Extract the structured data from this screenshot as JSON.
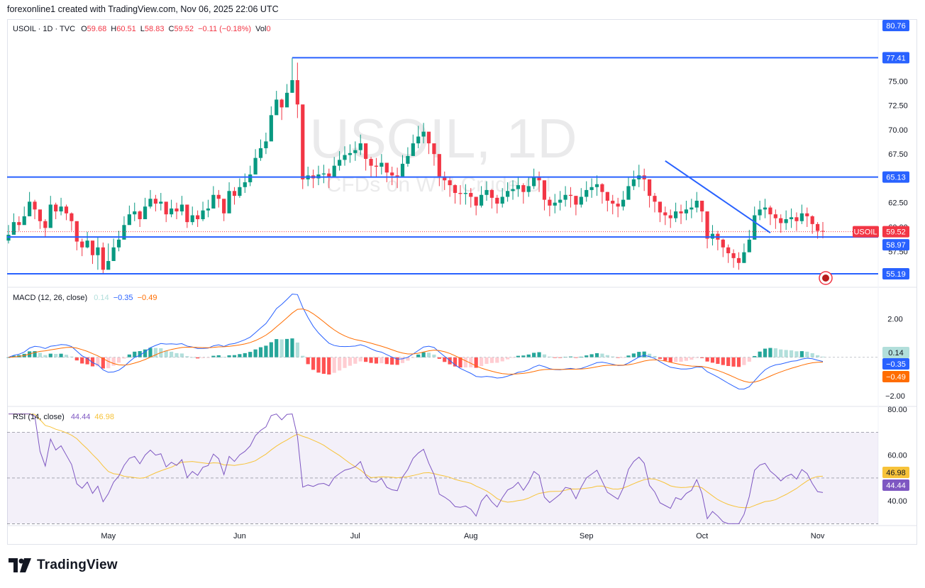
{
  "header": {
    "attribution": "forexonline1 created with TradingView.com, Nov 06, 2025 22:06 UTC"
  },
  "legend": {
    "symbol": "USOIL · 1D · TVC",
    "o_label": "O",
    "o": "59.68",
    "h_label": "H",
    "h": "60.51",
    "l_label": "L",
    "l": "58.83",
    "c_label": "C",
    "c": "59.52",
    "chg": "−0.11 (−0.18%)",
    "vol_label": "Vol",
    "vol": "0"
  },
  "watermark": {
    "line1": "USOIL, 1D",
    "line2": "CFDs on WTI Crude Oil"
  },
  "brand": {
    "name": "TradingView"
  },
  "colors": {
    "up": "#089981",
    "down": "#f23645",
    "level": "#2962ff",
    "macd": "#2962ff",
    "signal": "#ff6d00",
    "rsi": "#7e57c2",
    "rsi_ma": "#f7c33a"
  },
  "chart_data": [
    {
      "type": "candlestick",
      "ylim": [
        53.8,
        81.3
      ],
      "x_ticks": [
        "May",
        "Jun",
        "Jul",
        "Aug",
        "Sep",
        "Oct",
        "Nov"
      ],
      "y_ticks": [
        "75.00",
        "72.50",
        "70.00",
        "67.50",
        "62.50",
        "60.00",
        "57.50"
      ],
      "price_labels": [
        {
          "text": "80.76",
          "kind": "top"
        },
        {
          "text": "77.41",
          "kind": "level"
        },
        {
          "text": "65.13",
          "kind": "level"
        },
        {
          "text": "59.52",
          "kind": "last",
          "name": "USOIL"
        },
        {
          "text": "58.97",
          "kind": "level"
        },
        {
          "text": "55.19",
          "kind": "level"
        }
      ],
      "levels": [
        77.41,
        65.13,
        58.97,
        55.19
      ],
      "trendline": {
        "from": [
          "Sep 26",
          66.8
        ],
        "to": [
          "Oct 22",
          59.4
        ]
      },
      "close": [
        59.2,
        60.5,
        60.2,
        61.1,
        62.6,
        61.8,
        60.6,
        59.9,
        62.3,
        61.6,
        62.1,
        61.4,
        60.6,
        58.5,
        57.9,
        58.6,
        57.1,
        57.9,
        55.6,
        56.5,
        57.9,
        58.7,
        60.2,
        61.3,
        61.6,
        60.8,
        62.1,
        62.9,
        62.4,
        62.6,
        61.3,
        61.9,
        61.6,
        62.3,
        60.5,
        61.2,
        60.8,
        61.7,
        61.9,
        63.3,
        62.9,
        61.4,
        63.7,
        63.2,
        64.1,
        64.6,
        65.4,
        67.1,
        68.1,
        68.8,
        71.5,
        73.1,
        72.3,
        73.8,
        75.1,
        72.6,
        64.9,
        65.3,
        65.0,
        65.4,
        65.5,
        65.1,
        66.3,
        66.9,
        67.4,
        67.6,
        67.9,
        68.6,
        67.0,
        66.3,
        66.2,
        66.6,
        65.6,
        65.3,
        65.2,
        66.5,
        67.3,
        68.6,
        69.3,
        69.8,
        68.6,
        67.5,
        65.2,
        64.8,
        64.3,
        63.5,
        63.4,
        63.5,
        63.1,
        62.2,
        63.3,
        63.8,
        63.0,
        62.4,
        63.1,
        63.7,
        63.9,
        64.3,
        63.6,
        64.2,
        65.1,
        64.8,
        62.8,
        62.2,
        62.5,
        62.8,
        63.3,
        63.2,
        62.3,
        63.1,
        63.8,
        64.1,
        64.4,
        63.6,
        62.7,
        62.4,
        62.1,
        62.8,
        64.2,
        64.9,
        65.3,
        64.9,
        63.2,
        62.6,
        61.5,
        61.2,
        60.9,
        61.6,
        61.4,
        61.8,
        62.0,
        62.7,
        61.6,
        58.8,
        59.3,
        58.7,
        57.9,
        57.3,
        56.8,
        56.3,
        57.4,
        58.7,
        61.2,
        61.8,
        62.0,
        61.3,
        60.9,
        60.4,
        60.8,
        61.0,
        60.6,
        61.4,
        61.1,
        60.3,
        59.6,
        59.52
      ],
      "low": [
        58.3,
        59.7,
        59.6,
        60.3,
        61.7,
        60.8,
        59.8,
        59.0,
        60.9,
        60.8,
        61.2,
        60.7,
        59.6,
        57.6,
        57.0,
        57.8,
        56.2,
        55.6,
        55.2,
        55.8,
        56.8,
        57.5,
        59.2,
        60.3,
        60.6,
        60.0,
        61.0,
        61.9,
        61.6,
        61.7,
        60.5,
        61.0,
        60.8,
        61.2,
        59.9,
        60.2,
        60.0,
        60.6,
        61.0,
        62.2,
        62.0,
        60.6,
        62.6,
        62.3,
        63.0,
        63.5,
        64.2,
        65.7,
        66.8,
        67.5,
        69.8,
        72.0,
        71.0,
        72.5,
        73.8,
        71.2,
        63.9,
        64.2,
        64.0,
        64.3,
        64.5,
        64.0,
        65.2,
        65.8,
        66.3,
        66.6,
        66.8,
        67.4,
        65.8,
        65.1,
        65.1,
        65.4,
        64.6,
        64.3,
        64.0,
        65.2,
        66.2,
        67.4,
        68.1,
        68.6,
        67.5,
        66.3,
        64.2,
        63.8,
        63.1,
        62.4,
        62.3,
        62.3,
        62.0,
        61.2,
        62.0,
        62.7,
        61.9,
        61.4,
        62.0,
        62.6,
        62.8,
        63.1,
        62.4,
        63.1,
        63.9,
        63.6,
        61.7,
        61.1,
        61.4,
        61.7,
        62.1,
        62.0,
        61.2,
        62.0,
        62.6,
        63.0,
        63.2,
        62.4,
        61.6,
        61.3,
        61.0,
        61.7,
        63.0,
        63.8,
        64.1,
        63.7,
        62.0,
        61.5,
        60.5,
        60.2,
        59.9,
        60.5,
        60.3,
        60.7,
        60.9,
        61.5,
        60.5,
        57.8,
        58.1,
        57.6,
        56.9,
        56.3,
        55.8,
        55.6,
        56.3,
        57.6,
        59.9,
        60.7,
        60.9,
        60.2,
        59.8,
        59.4,
        59.7,
        59.9,
        59.6,
        60.3,
        60.0,
        59.3,
        58.8,
        58.83
      ],
      "high": [
        60.2,
        61.4,
        61.1,
        62.1,
        63.6,
        62.8,
        61.5,
        60.8,
        63.2,
        62.5,
        63.0,
        62.3,
        61.5,
        59.4,
        58.8,
        59.5,
        58.0,
        59.0,
        58.4,
        58.3,
        58.8,
        59.6,
        61.1,
        62.2,
        62.5,
        61.7,
        63.0,
        63.8,
        63.3,
        63.5,
        62.2,
        62.8,
        62.5,
        63.2,
        61.4,
        62.1,
        61.7,
        62.6,
        62.8,
        64.2,
        63.8,
        62.3,
        64.6,
        64.1,
        65.0,
        65.5,
        66.3,
        68.0,
        69.0,
        69.7,
        72.4,
        74.0,
        73.2,
        74.7,
        77.4,
        76.9,
        66.1,
        66.2,
        65.9,
        66.3,
        66.4,
        66.0,
        67.2,
        67.8,
        68.3,
        68.5,
        68.8,
        69.5,
        68.4,
        67.2,
        67.1,
        67.5,
        66.5,
        66.2,
        66.1,
        67.4,
        68.2,
        69.5,
        70.4,
        70.7,
        69.6,
        68.4,
        66.1,
        65.7,
        65.2,
        64.4,
        64.3,
        64.4,
        64.0,
        63.1,
        64.2,
        64.7,
        63.9,
        63.3,
        64.0,
        64.6,
        64.8,
        65.2,
        64.5,
        65.1,
        66.0,
        65.7,
        63.7,
        63.1,
        63.4,
        63.7,
        64.2,
        64.1,
        63.2,
        64.0,
        64.7,
        65.0,
        65.3,
        64.5,
        63.6,
        63.3,
        63.0,
        63.7,
        65.1,
        65.8,
        66.4,
        66.0,
        64.1,
        63.5,
        62.4,
        62.1,
        61.8,
        62.5,
        62.3,
        62.7,
        62.9,
        63.6,
        62.5,
        60.2,
        60.2,
        59.6,
        58.8,
        58.2,
        57.7,
        57.4,
        58.3,
        59.7,
        62.1,
        62.7,
        62.9,
        62.2,
        61.8,
        61.3,
        61.7,
        61.9,
        61.5,
        62.3,
        62.0,
        61.2,
        60.5,
        60.51
      ]
    },
    {
      "type": "macd",
      "name": "MACD (12, 26, close)",
      "values": [
        "0.14",
        "−0.35",
        "−0.49"
      ],
      "ylim": [
        -2.55,
        3.6
      ],
      "y_ticks": [
        "2.00",
        "−2.00"
      ]
    },
    {
      "type": "rsi",
      "name": "RSI (14, close)",
      "values": [
        "44.44",
        "46.98"
      ],
      "ylim": [
        29.5,
        81
      ],
      "y_ticks": [
        "80.00",
        "60.00",
        "40.00"
      ],
      "bands": [
        70,
        50,
        30
      ]
    }
  ]
}
